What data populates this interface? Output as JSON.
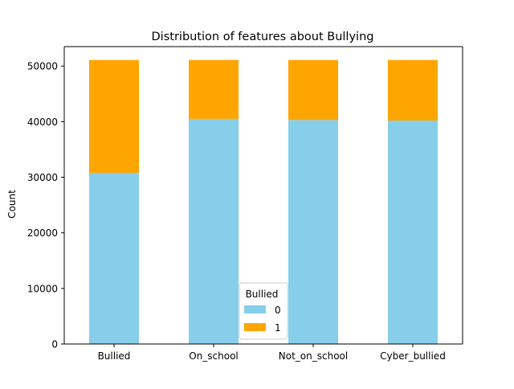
{
  "chart_data": {
    "type": "bar",
    "stacked": true,
    "title": "Distribution of features about Bullying",
    "xlabel": "",
    "ylabel": "Count",
    "categories": [
      "Bullied",
      "On_school",
      "Not_on_school",
      "Cyber_bullied"
    ],
    "series": [
      {
        "name": "0",
        "color": "#87CEEB",
        "values": [
          30800,
          40500,
          40300,
          40200
        ]
      },
      {
        "name": "1",
        "color": "#FFA500",
        "values": [
          20300,
          10600,
          10800,
          10900
        ]
      }
    ],
    "ylim": [
      0,
      53500
    ],
    "yticks": [
      "0",
      "10000",
      "20000",
      "30000",
      "40000",
      "50000"
    ],
    "ytick_values": [
      0,
      10000,
      20000,
      30000,
      40000,
      50000
    ],
    "grid": false,
    "legend": {
      "title": "Bullied",
      "position": "bottom-center"
    }
  }
}
